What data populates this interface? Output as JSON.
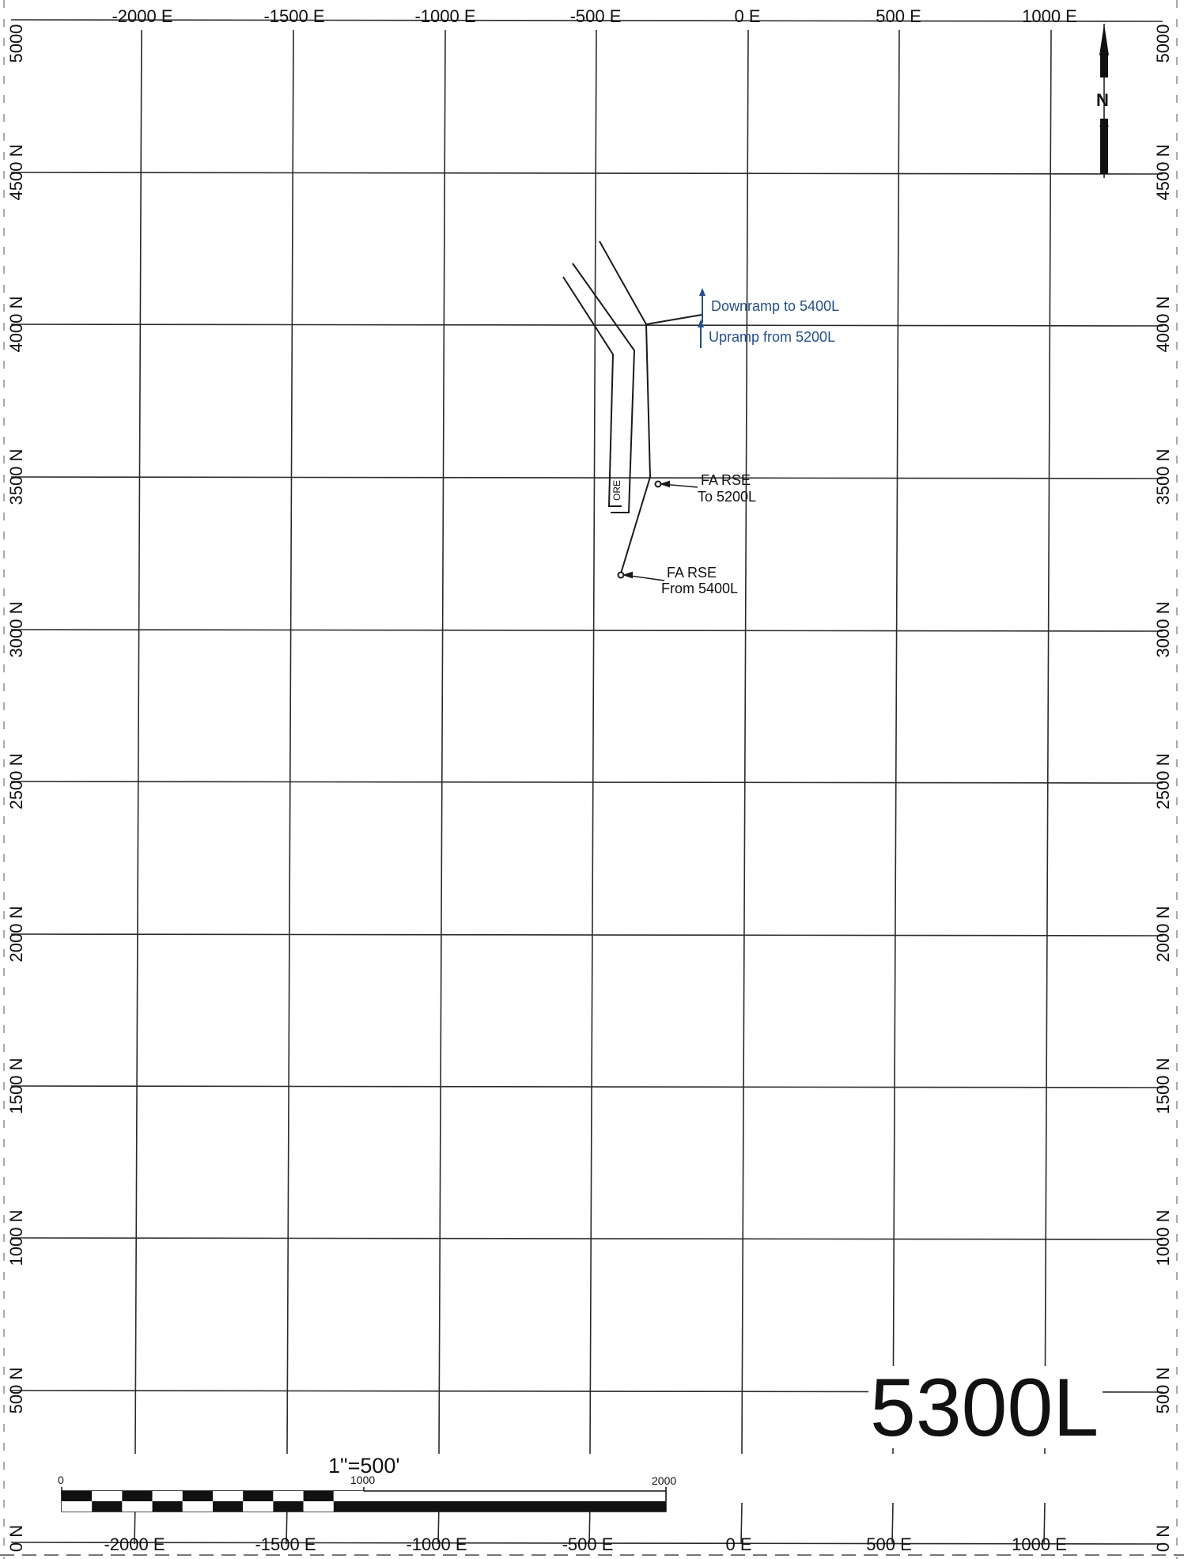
{
  "top_grid_labels": [
    "-2000 E",
    "-1500 E",
    "-1000 E",
    "-500 E",
    "0 E",
    "500 E",
    "1000 E"
  ],
  "bottom_grid_labels": [
    "-2000 E",
    "-1500 E",
    "-1000 E",
    "-500 E",
    "0 E",
    "500 E",
    "1000 E"
  ],
  "left_grid_labels": [
    "5000",
    "4500 N",
    "4000 N",
    "3500 N",
    "3000 N",
    "2500 N",
    "2000 N",
    "1500 N",
    "1000 N",
    "500 N",
    "0 N"
  ],
  "right_grid_labels": [
    "5000",
    "4500 N",
    "4000 N",
    "3500 N",
    "3000 N",
    "2500 N",
    "2000 N",
    "1500 N",
    "1000 N",
    "500 N",
    "0 N"
  ],
  "north_arrow_label": "N",
  "level_title": "5300L",
  "annotations": {
    "downramp": "Downramp to 5400L",
    "upramp": "Upramp from 5200L",
    "ore": "ORE",
    "fa_rse_to_line1": "FA RSE",
    "fa_rse_to_line2": "To 5200L",
    "fa_rse_from_line1": "FA RSE",
    "fa_rse_from_line2": "From 5400L"
  },
  "scale_bar": {
    "ratio": "1\"=500'",
    "tick_start": "0",
    "tick_mid": "1000",
    "tick_end": "2000"
  },
  "colors": {
    "grid": "#2a2a2a",
    "workings": "#1a1a1a",
    "ramp_annotation": "#1f4e9c"
  }
}
